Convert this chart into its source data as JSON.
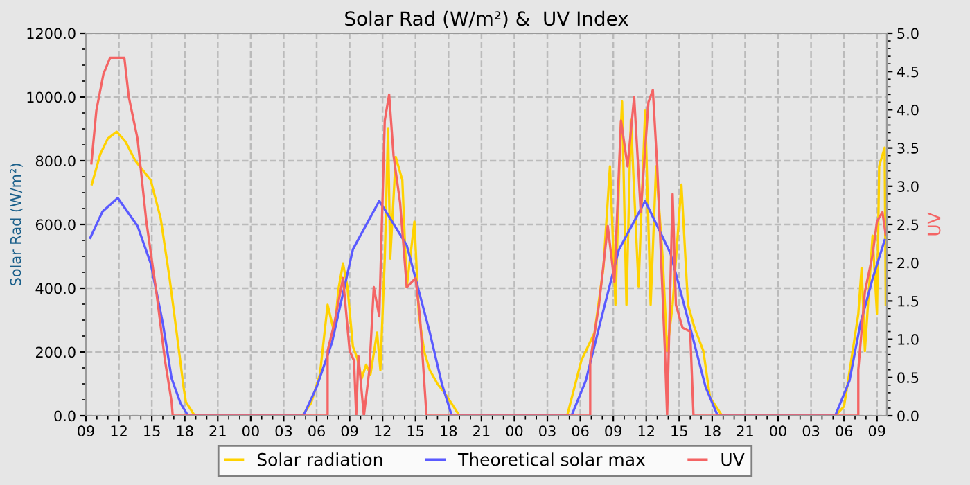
{
  "chart_data": {
    "type": "line",
    "title": "Solar Rad (W/m²) &  UV Index",
    "ylabel": "Solar Rad (W/m²)",
    "y2label": "UV",
    "xlim": [
      9,
      81.9
    ],
    "ylim": [
      0,
      1200
    ],
    "y2lim": [
      0,
      5
    ],
    "xticks": [
      {
        "value": 9,
        "label": "09"
      },
      {
        "value": 12,
        "label": "12"
      },
      {
        "value": 15,
        "label": "15"
      },
      {
        "value": 18,
        "label": "18"
      },
      {
        "value": 21,
        "label": "21"
      },
      {
        "value": 24,
        "label": "00"
      },
      {
        "value": 27,
        "label": "03"
      },
      {
        "value": 30,
        "label": "06"
      },
      {
        "value": 33,
        "label": "09"
      },
      {
        "value": 36,
        "label": "12"
      },
      {
        "value": 39,
        "label": "15"
      },
      {
        "value": 42,
        "label": "18"
      },
      {
        "value": 45,
        "label": "21"
      },
      {
        "value": 48,
        "label": "00"
      },
      {
        "value": 51,
        "label": "03"
      },
      {
        "value": 54,
        "label": "06"
      },
      {
        "value": 57,
        "label": "09"
      },
      {
        "value": 60,
        "label": "12"
      },
      {
        "value": 63,
        "label": "15"
      },
      {
        "value": 66,
        "label": "18"
      },
      {
        "value": 69,
        "label": "21"
      },
      {
        "value": 72,
        "label": "00"
      },
      {
        "value": 75,
        "label": "03"
      },
      {
        "value": 78,
        "label": "06"
      },
      {
        "value": 81,
        "label": "09"
      }
    ],
    "yticks": [
      {
        "value": 0,
        "label": "0.0"
      },
      {
        "value": 200,
        "label": "200.0"
      },
      {
        "value": 400,
        "label": "400.0"
      },
      {
        "value": 600,
        "label": "600.0"
      },
      {
        "value": 800,
        "label": "800.0"
      },
      {
        "value": 1000,
        "label": "1000.0"
      },
      {
        "value": 1200,
        "label": "1200.0"
      }
    ],
    "y2ticks": [
      {
        "value": 0,
        "label": "0.0"
      },
      {
        "value": 0.5,
        "label": "0.5"
      },
      {
        "value": 1,
        "label": "1.0"
      },
      {
        "value": 1.5,
        "label": "1.5"
      },
      {
        "value": 2,
        "label": "2.0"
      },
      {
        "value": 2.5,
        "label": "2.5"
      },
      {
        "value": 3,
        "label": "3.0"
      },
      {
        "value": 3.5,
        "label": "3.5"
      },
      {
        "value": 4,
        "label": "4.0"
      },
      {
        "value": 4.5,
        "label": "4.5"
      },
      {
        "value": 5,
        "label": "5.0"
      }
    ],
    "grid": true,
    "legend": "bottom",
    "marker": "none",
    "line_style": "solid",
    "series": [
      {
        "name": "Solar radiation",
        "color": "#ffd200",
        "x": [
          9.54,
          10.3,
          11.0,
          11.8,
          12.6,
          13.5,
          14.9,
          15.8,
          16.6,
          17.3,
          17.9,
          18.1,
          18.9,
          22.0,
          26.0,
          28.7,
          29.5,
          30.3,
          31.0,
          31.6,
          32.0,
          32.4,
          32.8,
          33.3,
          33.7,
          34.1,
          34.5,
          34.9,
          35.5,
          35.8,
          36.2,
          36.5,
          36.7,
          37.2,
          37.8,
          38.2,
          38.9,
          39.3,
          39.8,
          40.3,
          41.0,
          41.6,
          43.0,
          47.0,
          52.8,
          54.1,
          55.3,
          56.1,
          56.7,
          57.2,
          57.6,
          57.8,
          58.2,
          58.6,
          59.3,
          59.9,
          60.4,
          60.9,
          61.5,
          61.9,
          62.4,
          63.2,
          63.8,
          64.4,
          65.2,
          65.8,
          66.9,
          72.0,
          77.2,
          78.0,
          78.4,
          79.3,
          79.6,
          79.9,
          80.6,
          81.0,
          81.2,
          81.7,
          81.8
        ],
        "values": [
          726,
          820,
          870,
          891,
          860,
          800,
          739,
          620,
          435,
          250,
          87,
          43,
          0,
          0,
          0,
          0,
          40,
          130,
          348,
          261,
          400,
          478,
          404,
          217,
          180,
          117,
          160,
          130,
          261,
          143,
          493,
          900,
          493,
          812,
          739,
          404,
          609,
          317,
          200,
          143,
          100,
          74,
          0,
          0,
          0,
          174,
          261,
          464,
          783,
          348,
          826,
          986,
          348,
          928,
          406,
          957,
          348,
          783,
          493,
          203,
          348,
          725,
          348,
          275,
          203,
          58,
          0,
          0,
          0,
          29,
          116,
          319,
          464,
          203,
          565,
          319,
          783,
          841,
          348
        ]
      },
      {
        "name": "Theoretical solar max",
        "color": "#5a5aff",
        "x": [
          9.4,
          10.5,
          11.9,
          13.7,
          14.9,
          16.0,
          16.8,
          17.6,
          18.3,
          24.0,
          28.8,
          30.0,
          31.4,
          33.3,
          35.7,
          38.2,
          40.3,
          41.4,
          42.3,
          48.0,
          53.2,
          54.5,
          55.8,
          57.5,
          59.9,
          62.2,
          64.2,
          65.4,
          66.5,
          72.0,
          77.2,
          78.5,
          79.5,
          80.6,
          81.7
        ],
        "values": [
          558,
          640,
          683,
          595,
          478,
          290,
          117,
          40,
          0,
          0,
          0,
          90,
          230,
          522,
          674,
          535,
          261,
          100,
          0,
          0,
          0,
          110,
          290,
          520,
          674,
          510,
          250,
          90,
          0,
          0,
          0,
          110,
          290,
          430,
          551
        ]
      },
      {
        "name": "UV",
        "color": "#f46464",
        "axis": "y2",
        "x": [
          9.5,
          9.95,
          10.6,
          11.2,
          12.5,
          12.9,
          13.7,
          14.5,
          15.4,
          16.2,
          16.8,
          16.9,
          24.0,
          31.0,
          31.0,
          31.6,
          32.4,
          33.0,
          33.4,
          33.6,
          33.8,
          34.3,
          34.8,
          35.2,
          35.7,
          36.2,
          36.6,
          37.0,
          37.6,
          38.2,
          39.0,
          39.4,
          40.0,
          48.0,
          54.9,
          54.9,
          55.7,
          56.5,
          57.1,
          57.7,
          58.3,
          58.9,
          59.5,
          60.2,
          60.6,
          61.0,
          61.7,
          61.9,
          62.4,
          62.7,
          63.3,
          64.0,
          64.3,
          72.0,
          79.3,
          79.3,
          79.9,
          80.6,
          81.0,
          81.5,
          81.8
        ],
        "values": [
          3.3,
          3.99,
          4.47,
          4.68,
          4.68,
          4.17,
          3.62,
          2.54,
          1.63,
          0.72,
          0.18,
          0,
          0,
          0,
          0.85,
          1.2,
          1.8,
          0.85,
          0.72,
          0,
          0.78,
          0,
          0.6,
          1.68,
          1.3,
          3.86,
          4.2,
          3.4,
          2.78,
          1.68,
          1.8,
          1.3,
          0,
          0,
          0,
          0.72,
          1.45,
          2.48,
          1.75,
          3.86,
          3.26,
          4.17,
          2.66,
          4.1,
          4.26,
          3.26,
          0.85,
          0,
          2.9,
          1.45,
          1.15,
          1.1,
          0,
          0,
          0,
          0.6,
          1.62,
          2.1,
          2.54,
          2.66,
          2.36
        ]
      }
    ]
  }
}
